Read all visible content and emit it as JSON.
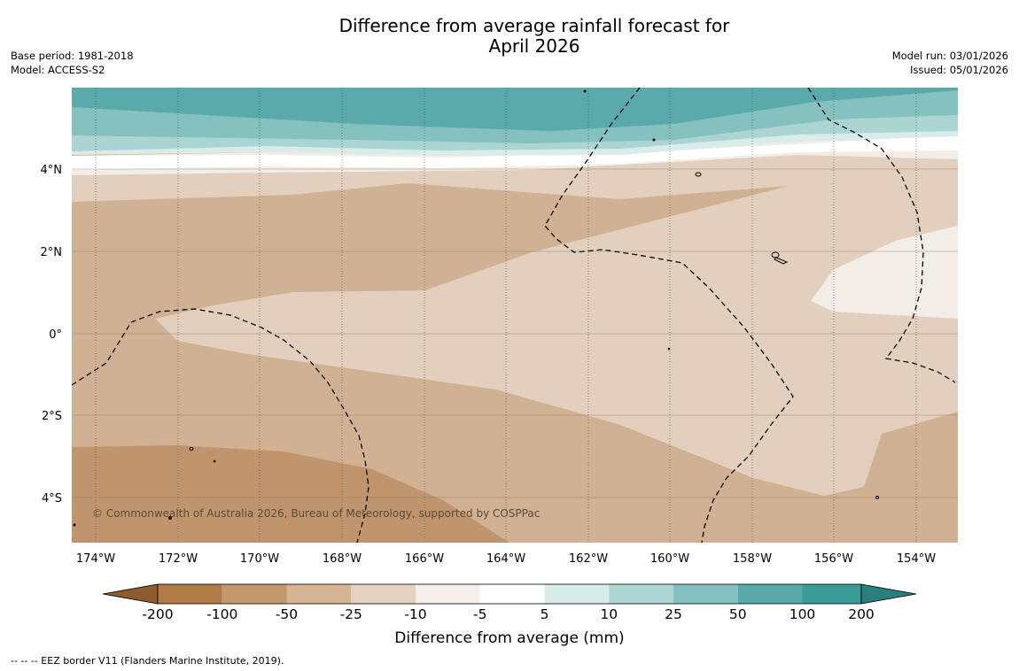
{
  "title": {
    "line1": "Difference from average rainfall forecast for",
    "line2": "April 2026"
  },
  "meta_left": {
    "base_period": "Base period: 1981-2018",
    "model": "Model: ACCESS-S2"
  },
  "meta_right": {
    "model_run": "Model run: 03/01/2026",
    "issued": "Issued: 05/01/2026"
  },
  "map": {
    "lat_labels": [
      "4°N",
      "2°N",
      "0°",
      "2°S",
      "4°S"
    ],
    "lon_labels": [
      "174°W",
      "172°W",
      "170°W",
      "168°W",
      "166°W",
      "164°W",
      "162°W",
      "160°W",
      "158°W",
      "156°W",
      "154°W"
    ],
    "copyright": "© Commonwealth of Australia 2026, Bureau of Meteorology, supported by COSPPac"
  },
  "colorbar": {
    "ticks": [
      "-200",
      "-100",
      "-50",
      "-25",
      "-10",
      "-5",
      "5",
      "10",
      "25",
      "50",
      "100",
      "200"
    ],
    "label": "Difference from average (mm)",
    "colors": [
      "#8e5b2e",
      "#b17b47",
      "#c3966c",
      "#d5b393",
      "#e5d2c1",
      "#f4efea",
      "#ffffff",
      "#d8ecea",
      "#acd6d4",
      "#82c1bf",
      "#58a9aa",
      "#3a9b99",
      "#2a7f7d"
    ]
  },
  "footnote": "--  --  -- EEZ border V11 (Flanders Marine Institute, 2019)."
}
